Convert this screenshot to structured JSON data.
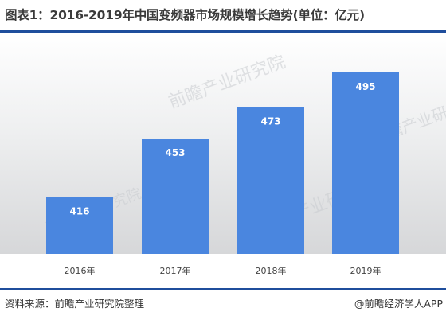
{
  "title": "图表1：2016-2019年中国变频器市场规模增长趋势(单位：亿元)",
  "footer": {
    "source": "资料来源：前瞻产业研究院整理",
    "brand": "@前瞻经济学人APP"
  },
  "watermark": {
    "text": "前瞻产业研究院"
  },
  "colors": {
    "bar": "#4a86df",
    "accent_rule": "#1f4e9c",
    "background_top": "#ffffff",
    "background_bottom": "#d6d7d9"
  },
  "chart_data": {
    "type": "bar",
    "title": "图表1：2016-2019年中国变频器市场规模增长趋势(单位：亿元)",
    "categories": [
      "2016年",
      "2017年",
      "2018年",
      "2019年"
    ],
    "values": [
      416,
      453,
      473,
      495
    ],
    "ylim": [
      380,
      500
    ],
    "grid": false,
    "legend": "none"
  }
}
